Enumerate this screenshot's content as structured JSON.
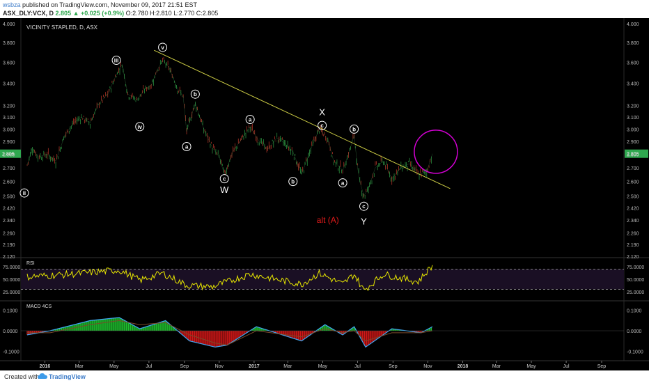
{
  "header": {
    "user": "wsbza",
    "published": "published on TradingView.com, November 09, 2017 21:51 EST",
    "symbol": "ASX_DLY:VCX, D",
    "last": "2.805",
    "change": "+0.025 (+0.9%)",
    "open": "O:2.780",
    "high": "H:2.810",
    "low": "L:2.770",
    "close": "C:2.805"
  },
  "footer": {
    "created_with": "Created with",
    "brand": "TradingView"
  },
  "colors": {
    "background": "#000000",
    "up": "#2e9e44",
    "down": "#c0392b",
    "trendline": "#cccc44",
    "circle": "#d400d4",
    "rsi": "#e6e600",
    "macd_line": "#3fa9f5",
    "signal_line": "#7a4a2a",
    "price_label": "#2fa84f",
    "alt_label": "#e21a1a"
  },
  "chart_data": [
    {
      "type": "line",
      "panel": "price",
      "title": "VICINITY STAPLED, D, ASX",
      "ylim": [
        2.12,
        4.0
      ],
      "yscale": "log",
      "yticks": [
        "4.000",
        "3.800",
        "3.600",
        "3.400",
        "3.200",
        "3.100",
        "3.000",
        "2.900",
        "2.800",
        "2.700",
        "2.600",
        "2.500",
        "2.420",
        "2.340",
        "2.260",
        "2.190",
        "2.120"
      ],
      "last_price_label": "2.805",
      "x_labels": [
        "2016",
        "Mar",
        "May",
        "Jul",
        "Sep",
        "Nov",
        "2017",
        "Mar",
        "May",
        "Jul",
        "Sep",
        "Nov",
        "2018",
        "Mar",
        "May",
        "Jul",
        "Sep"
      ],
      "series": [
        {
          "values": [
            [
              "2015-12-01",
              2.72
            ],
            [
              "2015-12-10",
              2.85
            ],
            [
              "2015-12-20",
              2.78
            ],
            [
              "2016-01-05",
              2.8
            ],
            [
              "2016-01-20",
              2.75
            ],
            [
              "2016-02-05",
              2.95
            ],
            [
              "2016-02-20",
              3.05
            ],
            [
              "2016-03-05",
              3.1
            ],
            [
              "2016-03-20",
              3.05
            ],
            [
              "2016-04-05",
              3.22
            ],
            [
              "2016-04-20",
              3.3
            ],
            [
              "2016-05-05",
              3.48
            ],
            [
              "2016-05-15",
              3.58
            ],
            [
              "2016-05-25",
              3.3
            ],
            [
              "2016-06-10",
              3.25
            ],
            [
              "2016-06-25",
              3.35
            ],
            [
              "2016-07-05",
              3.38
            ],
            [
              "2016-07-15",
              3.52
            ],
            [
              "2016-07-25",
              3.62
            ],
            [
              "2016-08-05",
              3.55
            ],
            [
              "2016-08-20",
              3.35
            ],
            [
              "2016-08-30",
              3.28
            ],
            [
              "2016-09-05",
              2.98
            ],
            [
              "2016-09-20",
              3.22
            ],
            [
              "2016-10-05",
              3.0
            ],
            [
              "2016-10-20",
              2.85
            ],
            [
              "2016-11-01",
              2.78
            ],
            [
              "2016-11-10",
              2.65
            ],
            [
              "2016-11-25",
              2.82
            ],
            [
              "2016-12-10",
              2.92
            ],
            [
              "2016-12-25",
              3.02
            ],
            [
              "2017-01-10",
              2.9
            ],
            [
              "2017-01-25",
              2.84
            ],
            [
              "2017-02-10",
              2.93
            ],
            [
              "2017-02-25",
              2.88
            ],
            [
              "2017-03-10",
              2.82
            ],
            [
              "2017-03-25",
              2.65
            ],
            [
              "2017-04-10",
              2.84
            ],
            [
              "2017-04-25",
              3.0
            ],
            [
              "2017-05-10",
              2.92
            ],
            [
              "2017-05-20",
              2.75
            ],
            [
              "2017-06-05",
              2.68
            ],
            [
              "2017-06-15",
              2.8
            ],
            [
              "2017-06-25",
              2.95
            ],
            [
              "2017-07-01",
              2.7
            ],
            [
              "2017-07-05",
              2.6
            ],
            [
              "2017-07-12",
              2.5
            ],
            [
              "2017-07-20",
              2.55
            ],
            [
              "2017-08-01",
              2.7
            ],
            [
              "2017-08-15",
              2.75
            ],
            [
              "2017-08-30",
              2.62
            ],
            [
              "2017-09-15",
              2.7
            ],
            [
              "2017-09-30",
              2.73
            ],
            [
              "2017-10-15",
              2.65
            ],
            [
              "2017-10-30",
              2.67
            ],
            [
              "2017-11-09",
              2.805
            ]
          ]
        }
      ],
      "trendline": [
        [
          "2016-07-10",
          3.72
        ],
        [
          "2017-12-10",
          2.55
        ]
      ],
      "highlight_circle": [
        "2017-11-15",
        2.82
      ],
      "annotations": [
        {
          "text": "ii",
          "date": "2015-11-26",
          "price": 2.52,
          "circled": true
        },
        {
          "text": "iii",
          "date": "2016-05-05",
          "price": 3.62,
          "circled": true
        },
        {
          "text": "iv",
          "date": "2016-06-15",
          "price": 3.02,
          "circled": true
        },
        {
          "text": "v",
          "date": "2016-07-25",
          "price": 3.75,
          "circled": true
        },
        {
          "text": "b",
          "date": "2016-09-20",
          "price": 3.3,
          "circled": true
        },
        {
          "text": "a",
          "date": "2016-09-05",
          "price": 2.86,
          "circled": true
        },
        {
          "text": "c",
          "date": "2016-11-10",
          "price": 2.62,
          "circled": true
        },
        {
          "text": "W",
          "date": "2016-11-10",
          "price": 2.54,
          "circled": false
        },
        {
          "text": "a",
          "date": "2016-12-25",
          "price": 3.08,
          "circled": true
        },
        {
          "text": "b",
          "date": "2017-03-10",
          "price": 2.6,
          "circled": true
        },
        {
          "text": "X",
          "date": "2017-04-30",
          "price": 3.14,
          "circled": false
        },
        {
          "text": "c",
          "date": "2017-04-30",
          "price": 3.03,
          "circled": true
        },
        {
          "text": "b",
          "date": "2017-06-25",
          "price": 3.0,
          "circled": true
        },
        {
          "text": "a",
          "date": "2017-06-05",
          "price": 2.59,
          "circled": true
        },
        {
          "text": "c",
          "date": "2017-07-12",
          "price": 2.43,
          "circled": true
        },
        {
          "text": "Y",
          "date": "2017-07-12",
          "price": 2.33,
          "circled": false
        },
        {
          "text": "alt (A)",
          "date": "2017-05-10",
          "price": 2.34,
          "circled": false,
          "color": "alt"
        }
      ]
    },
    {
      "type": "line",
      "panel": "rsi",
      "title": "RSI",
      "ylim": [
        10,
        90
      ],
      "yticks": [
        "75.0000",
        "50.0000",
        "25.0000"
      ],
      "bands": [
        70,
        30
      ],
      "values": [
        [
          "2015-12-01",
          55
        ],
        [
          "2016-02-15",
          60
        ],
        [
          "2016-05-10",
          68
        ],
        [
          "2016-06-15",
          48
        ],
        [
          "2016-07-25",
          62
        ],
        [
          "2016-09-05",
          38
        ],
        [
          "2016-10-20",
          35
        ],
        [
          "2016-12-25",
          60
        ],
        [
          "2017-03-25",
          40
        ],
        [
          "2017-04-25",
          62
        ],
        [
          "2017-06-05",
          40
        ],
        [
          "2017-06-25",
          60
        ],
        [
          "2017-07-12",
          28
        ],
        [
          "2017-08-15",
          60
        ],
        [
          "2017-10-15",
          45
        ],
        [
          "2017-11-09",
          78
        ]
      ]
    },
    {
      "type": "line",
      "panel": "macd",
      "title": "MACD 4CS",
      "ylim": [
        -0.14,
        0.14
      ],
      "yticks": [
        "0.1000",
        "0.0000",
        "-0.1000"
      ],
      "series": [
        {
          "values": [
            [
              "2015-12-01",
              -0.02
            ],
            [
              "2016-01-10",
              0.0
            ],
            [
              "2016-03-20",
              0.05
            ],
            [
              "2016-05-10",
              0.065
            ],
            [
              "2016-06-15",
              0.01
            ],
            [
              "2016-07-30",
              0.05
            ],
            [
              "2016-09-10",
              -0.05
            ],
            [
              "2016-10-25",
              -0.08
            ],
            [
              "2016-11-15",
              -0.07
            ],
            [
              "2017-01-05",
              0.02
            ],
            [
              "2017-03-25",
              -0.05
            ],
            [
              "2017-05-05",
              0.03
            ],
            [
              "2017-06-05",
              -0.02
            ],
            [
              "2017-06-25",
              0.02
            ],
            [
              "2017-07-15",
              -0.08
            ],
            [
              "2017-08-30",
              0.01
            ],
            [
              "2017-10-20",
              -0.01
            ],
            [
              "2017-11-09",
              0.02
            ]
          ]
        },
        {
          "values": [
            [
              "2015-12-01",
              -0.01
            ],
            [
              "2016-01-10",
              -0.01
            ],
            [
              "2016-03-20",
              0.03
            ],
            [
              "2016-05-10",
              0.05
            ],
            [
              "2016-06-15",
              0.03
            ],
            [
              "2016-07-30",
              0.04
            ],
            [
              "2016-09-10",
              -0.02
            ],
            [
              "2016-10-25",
              -0.06
            ],
            [
              "2016-11-15",
              -0.07
            ],
            [
              "2017-01-05",
              0.0
            ],
            [
              "2017-03-25",
              -0.03
            ],
            [
              "2017-05-05",
              0.01
            ],
            [
              "2017-06-05",
              -0.01
            ],
            [
              "2017-06-25",
              0.0
            ],
            [
              "2017-07-15",
              -0.05
            ],
            [
              "2017-08-30",
              -0.01
            ],
            [
              "2017-10-20",
              -0.01
            ],
            [
              "2017-11-09",
              0.0
            ]
          ]
        }
      ]
    }
  ]
}
